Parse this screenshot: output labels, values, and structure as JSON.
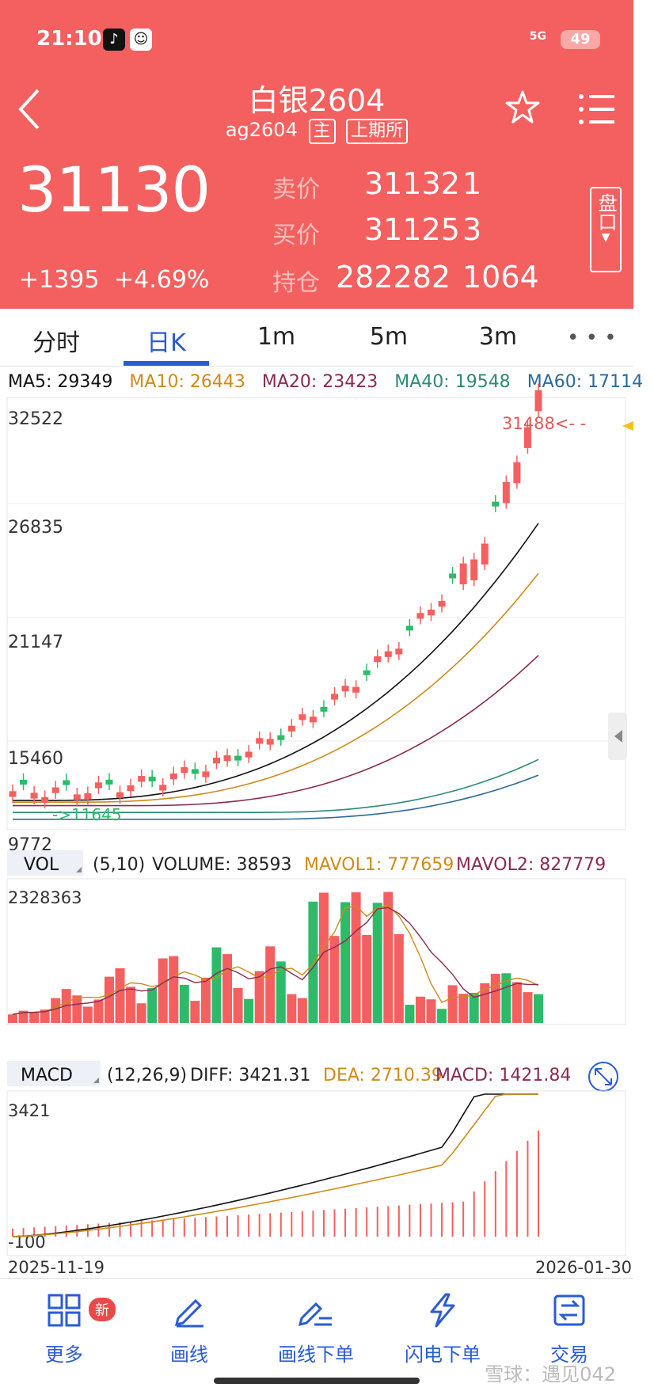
{
  "status": {
    "time": "21:10",
    "network": "5G",
    "battery": "49"
  },
  "header": {
    "title": "白银2604",
    "code": "ag2604",
    "tag_main": "主",
    "tag_exchange": "上期所"
  },
  "quote": {
    "last": "31130",
    "change": "+1395",
    "change_pct": "+4.69%",
    "ask_label": "卖价",
    "ask_price": "31132",
    "ask_vol": "1",
    "bid_label": "买价",
    "bid_price": "31125",
    "bid_vol": "3",
    "oi_label": "持仓",
    "oi_value": "282282",
    "oi_change": "1064",
    "pankou_label": "盘口"
  },
  "tabs": [
    {
      "label": "分时"
    },
    {
      "label": "日K"
    },
    {
      "label": "1m"
    },
    {
      "label": "5m"
    },
    {
      "label": "3m"
    }
  ],
  "ma": {
    "ma5": "MA5: 29349",
    "ma10": "MA10: 26443",
    "ma20": "MA20: 23423",
    "ma40": "MA40: 19548",
    "ma60": "MA60: 17114"
  },
  "chart_data": {
    "type": "candlestick",
    "price_axis_labels": [
      "32522",
      "26835",
      "21147",
      "15460",
      "9772"
    ],
    "price_range": [
      9772,
      32522
    ],
    "max_marker": "31488<- -",
    "min_marker": "->11645",
    "volume": {
      "tag": "VOL",
      "params": "(5,10)",
      "volume": "VOLUME: 38593",
      "mavol1": "MAVOL1: 777659",
      "mavol2": "MAVOL2: 827779",
      "axis_max": "2328363"
    },
    "macd": {
      "tag": "MACD",
      "params": "(12,26,9)",
      "diff": "DIFF: 3421.31",
      "dea": "DEA: 2710.39",
      "macd": "MACD: 1421.84",
      "axis_max": "3421",
      "axis_min": "-100"
    },
    "date_start": "2025-11-19",
    "date_end": "2026-01-30",
    "colors": {
      "up": "#f4605f",
      "down": "#2dbb6a",
      "ma5": "#111111",
      "ma10": "#d08a17",
      "ma20": "#8a2a52",
      "ma40": "#2b8a78",
      "ma60": "#2a6a9a"
    }
  },
  "bottomnav": [
    {
      "label": "更多",
      "badge": "新"
    },
    {
      "label": "画线"
    },
    {
      "label": "画线下单"
    },
    {
      "label": "闪电下单"
    },
    {
      "label": "交易"
    }
  ],
  "watermark": "雪球：遇见042"
}
